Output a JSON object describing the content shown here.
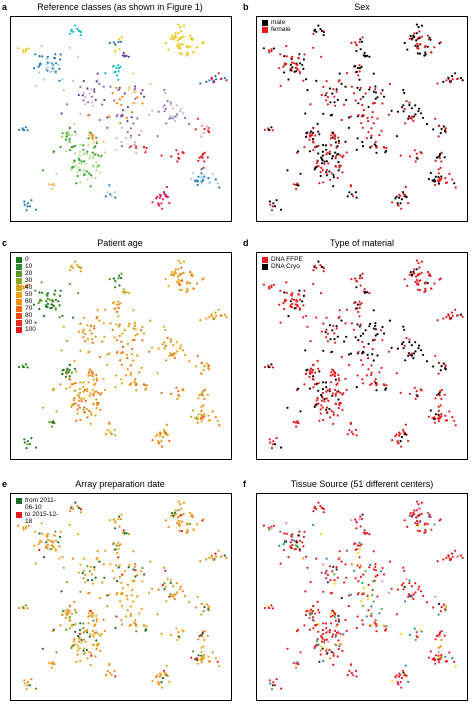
{
  "panels": [
    {
      "letter": "a",
      "title": "Reference classes (as shown in Figure 1)",
      "legend": []
    },
    {
      "letter": "b",
      "title": "Sex",
      "legend": [
        {
          "label": "male",
          "color": "#000000"
        },
        {
          "label": "female",
          "color": "#e41a1c"
        }
      ]
    },
    {
      "letter": "c",
      "title": "Patient age",
      "legend": [
        {
          "label": "0",
          "color": "#1b7a1b"
        },
        {
          "label": "10",
          "color": "#2e8b2e"
        },
        {
          "label": "20",
          "color": "#5a9a28"
        },
        {
          "label": "30",
          "color": "#8aa81e"
        },
        {
          "label": "40",
          "color": "#c9a616"
        },
        {
          "label": "50",
          "color": "#f0a010"
        },
        {
          "label": "60",
          "color": "#f08a10"
        },
        {
          "label": "70",
          "color": "#ee6a12"
        },
        {
          "label": "80",
          "color": "#e84a14"
        },
        {
          "label": "90",
          "color": "#e22a16"
        },
        {
          "label": "100",
          "color": "#e01818"
        }
      ]
    },
    {
      "letter": "d",
      "title": "Type of material",
      "legend": [
        {
          "label": "DNA FFPE",
          "color": "#e41a1c"
        },
        {
          "label": "DNA Cryo",
          "color": "#000000"
        }
      ]
    },
    {
      "letter": "e",
      "title": "Array preparation date",
      "legend": [
        {
          "label": "from 2011-06-10",
          "color": "#1b6b2b"
        },
        {
          "label": "to 2015-12-18",
          "color": "#e41a1c"
        }
      ]
    },
    {
      "letter": "f",
      "title": "Tissue Source (51 different centers)",
      "legend": []
    }
  ],
  "chart_data": [
    {
      "panel": "a",
      "type": "scatter",
      "title": "Reference classes (as shown in Figure 1)",
      "xlabel": "",
      "ylabel": "",
      "axes": "none",
      "encoding": "categorical color by reference class",
      "palette": [
        "#1f78b4",
        "#a6cee3",
        "#33a02c",
        "#b2df8a",
        "#e31a1c",
        "#fb9a99",
        "#ff7f00",
        "#fdbf6f",
        "#6a3d9a",
        "#cab2d6",
        "#f1c40f",
        "#17becf",
        "#d81b60",
        "#8e6bb8",
        "#555555"
      ],
      "clusters": [
        {
          "x": 0.05,
          "y": 0.15,
          "n": 6,
          "spread": 0.015,
          "classes": [
            10
          ]
        },
        {
          "x": 0.29,
          "y": 0.06,
          "n": 10,
          "spread": 0.02,
          "classes": [
            11
          ]
        },
        {
          "x": 0.48,
          "y": 0.12,
          "n": 10,
          "spread": 0.02,
          "classes": [
            10,
            0
          ]
        },
        {
          "x": 0.78,
          "y": 0.11,
          "n": 45,
          "spread": 0.04,
          "classes": [
            10
          ]
        },
        {
          "x": 0.52,
          "y": 0.17,
          "n": 6,
          "spread": 0.012,
          "classes": [
            8
          ]
        },
        {
          "x": 0.17,
          "y": 0.23,
          "n": 45,
          "spread": 0.045,
          "classes": [
            1,
            0
          ]
        },
        {
          "x": 0.47,
          "y": 0.26,
          "n": 12,
          "spread": 0.025,
          "classes": [
            11
          ]
        },
        {
          "x": 0.94,
          "y": 0.3,
          "n": 15,
          "spread": 0.02,
          "classes": [
            0,
            12
          ]
        },
        {
          "x": 0.35,
          "y": 0.38,
          "n": 30,
          "spread": 0.05,
          "classes": [
            8,
            9,
            13
          ]
        },
        {
          "x": 0.55,
          "y": 0.38,
          "n": 25,
          "spread": 0.05,
          "classes": [
            8,
            6,
            7
          ]
        },
        {
          "x": 0.72,
          "y": 0.46,
          "n": 30,
          "spread": 0.045,
          "classes": [
            13,
            9
          ]
        },
        {
          "x": 0.46,
          "y": 0.48,
          "n": 20,
          "spread": 0.05,
          "classes": [
            8,
            13,
            6
          ]
        },
        {
          "x": 0.04,
          "y": 0.55,
          "n": 6,
          "spread": 0.012,
          "classes": [
            0
          ]
        },
        {
          "x": 0.25,
          "y": 0.57,
          "n": 18,
          "spread": 0.02,
          "classes": [
            3,
            2
          ]
        },
        {
          "x": 0.37,
          "y": 0.58,
          "n": 10,
          "spread": 0.03,
          "classes": [
            6,
            7
          ]
        },
        {
          "x": 0.54,
          "y": 0.6,
          "n": 15,
          "spread": 0.04,
          "classes": [
            13,
            9
          ]
        },
        {
          "x": 0.88,
          "y": 0.55,
          "n": 12,
          "spread": 0.02,
          "classes": [
            4,
            5
          ]
        },
        {
          "x": 0.32,
          "y": 0.7,
          "n": 90,
          "spread": 0.065,
          "classes": [
            3,
            2
          ]
        },
        {
          "x": 0.57,
          "y": 0.66,
          "n": 10,
          "spread": 0.03,
          "classes": [
            4,
            5
          ]
        },
        {
          "x": 0.77,
          "y": 0.7,
          "n": 10,
          "spread": 0.02,
          "classes": [
            4
          ]
        },
        {
          "x": 0.88,
          "y": 0.69,
          "n": 10,
          "spread": 0.02,
          "classes": [
            4
          ]
        },
        {
          "x": 0.87,
          "y": 0.81,
          "n": 25,
          "spread": 0.035,
          "classes": [
            0,
            1
          ]
        },
        {
          "x": 0.68,
          "y": 0.9,
          "n": 20,
          "spread": 0.03,
          "classes": [
            12
          ]
        },
        {
          "x": 0.45,
          "y": 0.87,
          "n": 8,
          "spread": 0.02,
          "classes": [
            1,
            0
          ]
        },
        {
          "x": 0.17,
          "y": 0.83,
          "n": 6,
          "spread": 0.015,
          "classes": [
            7
          ]
        },
        {
          "x": 0.07,
          "y": 0.93,
          "n": 8,
          "spread": 0.02,
          "classes": [
            0
          ]
        }
      ]
    },
    {
      "panel": "b",
      "type": "scatter",
      "title": "Sex",
      "xlabel": "",
      "ylabel": "",
      "axes": "none",
      "series": [
        {
          "name": "male",
          "color": "#000000"
        },
        {
          "name": "female",
          "color": "#e41a1c"
        }
      ],
      "mix": {
        "male": 0.45,
        "female": 0.55
      }
    },
    {
      "panel": "c",
      "type": "scatter",
      "title": "Patient age",
      "xlabel": "",
      "ylabel": "",
      "axes": "none",
      "colorbar": {
        "labels": [
          "0",
          "10",
          "20",
          "30",
          "40",
          "50",
          "60",
          "70",
          "80",
          "90",
          "100"
        ]
      },
      "dominant": "orange (ages 40-70), green clusters for pediatric classes"
    },
    {
      "panel": "d",
      "type": "scatter",
      "title": "Type of material",
      "xlabel": "",
      "ylabel": "",
      "axes": "none",
      "series": [
        {
          "name": "DNA FFPE",
          "color": "#e41a1c"
        },
        {
          "name": "DNA Cryo",
          "color": "#000000"
        }
      ],
      "mix": {
        "DNA FFPE": 0.7,
        "DNA Cryo": 0.3
      }
    },
    {
      "panel": "e",
      "type": "scatter",
      "title": "Array preparation date",
      "xlabel": "",
      "ylabel": "",
      "axes": "none",
      "colorbar": {
        "from": "2011-06-10",
        "to": "2015-12-18"
      },
      "dominant": "orange with some green and red"
    },
    {
      "panel": "f",
      "type": "scatter",
      "title": "Tissue Source (51 different centers)",
      "xlabel": "",
      "ylabel": "",
      "axes": "none",
      "encoding": "categorical color by center, mostly red"
    }
  ]
}
